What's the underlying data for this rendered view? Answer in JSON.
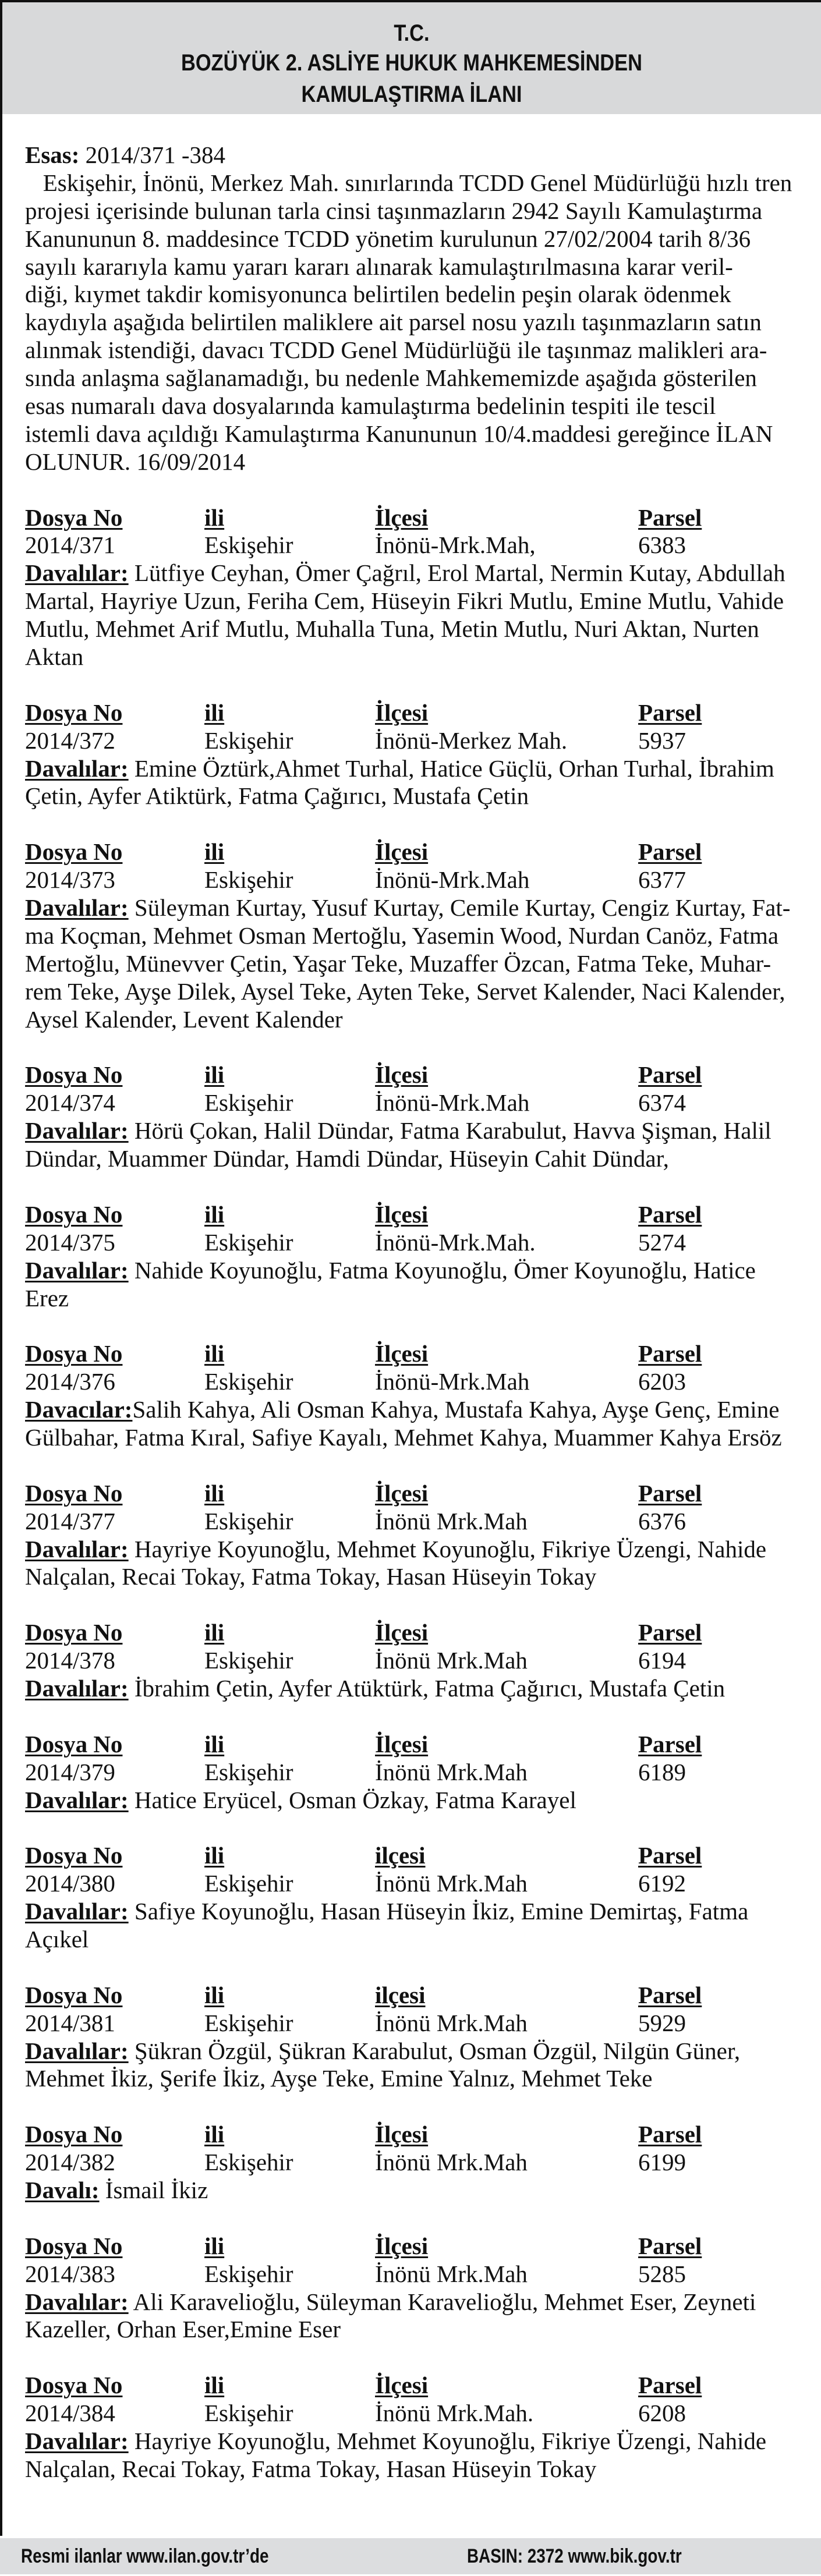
{
  "header": {
    "line1": "T.C.",
    "line2": "BOZÜYÜK 2. ASLİYE HUKUK MAHKEMESİNDEN",
    "line3": "KAMULAŞTIRMA İLANI"
  },
  "esas": {
    "label": "Esas:",
    "value": " 2014/371 -384"
  },
  "paragraph_lines": [
    "   Eskişehir, İnönü, Merkez Mah. sınırlarında TCDD Genel Müdürlüğü hızlı tren",
    "projesi içerisinde bulunan tarla cinsi taşınmazların 2942 Sayılı Kamulaştırma",
    "Kanununun 8. maddesince TCDD yönetim kurulunun 27/02/2004 tarih 8/36",
    "sayılı kararıyla kamu yararı kararı alınarak kamulaştırılmasına karar veril-",
    "diği, kıymet takdir komisyonunca belirtilen bedelin peşin olarak ödenmek",
    "kaydıyla aşağıda belirtilen maliklere ait parsel nosu yazılı taşınmazların satın",
    "alınmak istendiği, davacı TCDD Genel Müdürlüğü ile taşınmaz malikleri ara-",
    "sında anlaşma sağlanamadığı, bu nedenle Mahkememizde aşağıda gösterilen",
    "esas numaralı dava dosyalarında kamulaştırma bedelinin tespiti ile tescil",
    "istemli dava açıldığı Kamulaştırma Kanununun 10/4.maddesi gereğince İLAN",
    "OLUNUR. 16/09/2014"
  ],
  "cases": [
    {
      "h": [
        "Dosya No",
        "ili",
        "İlçesi",
        "Parsel"
      ],
      "v": [
        "2014/371",
        "Eskişehir",
        "İnönü-Mrk.Mah,",
        "6383"
      ],
      "party_label": "Davalılar:",
      "lines": [
        " Lütfiye Ceyhan, Ömer Çağrıl, Erol Martal, Nermin Kutay, Abdullah",
        "Martal, Hayriye Uzun, Feriha Cem, Hüseyin Fikri Mutlu, Emine Mutlu, Vahide",
        "Mutlu, Mehmet Arif Mutlu, Muhalla Tuna, Metin Mutlu, Nuri Aktan, Nurten",
        "Aktan"
      ]
    },
    {
      "h": [
        "Dosya No",
        "ili",
        "İlçesi",
        "Parsel"
      ],
      "v": [
        "2014/372",
        "Eskişehir",
        "İnönü-Merkez Mah.",
        "5937"
      ],
      "party_label": "Davalılar:",
      "lines": [
        " Emine Öztürk,Ahmet Turhal, Hatice Güçlü, Orhan Turhal, İbrahim",
        "Çetin, Ayfer Atiktürk, Fatma Çağırıcı, Mustafa Çetin"
      ]
    },
    {
      "h": [
        "Dosya No",
        "ili",
        "İlçesi",
        "Parsel"
      ],
      "v": [
        "2014/373",
        "Eskişehir",
        "İnönü-Mrk.Mah",
        "6377"
      ],
      "party_label": "Davalılar:",
      "lines": [
        " Süleyman Kurtay, Yusuf Kurtay, Cemile Kurtay, Cengiz Kurtay, Fat-",
        "ma Koçman, Mehmet Osman Mertoğlu, Yasemin Wood, Nurdan Canöz, Fatma",
        "Mertoğlu, Münevver Çetin, Yaşar Teke, Muzaffer Özcan, Fatma Teke, Muhar-",
        "rem Teke, Ayşe Dilek, Aysel Teke, Ayten Teke, Servet Kalender, Naci Kalender,",
        "Aysel Kalender, Levent Kalender"
      ]
    },
    {
      "h": [
        "Dosya No",
        "ili",
        "İlçesi",
        "Parsel"
      ],
      "v": [
        "2014/374",
        "Eskişehir",
        "İnönü-Mrk.Mah",
        "6374"
      ],
      "party_label": "Davalılar:",
      "lines": [
        " Hörü Çokan, Halil Dündar, Fatma Karabulut, Havva Şişman, Halil",
        "Dündar, Muammer Dündar, Hamdi Dündar, Hüseyin Cahit Dündar,"
      ]
    },
    {
      "h": [
        "Dosya No",
        "ili",
        "İlçesi",
        "Parsel"
      ],
      "v": [
        "2014/375",
        "Eskişehir",
        "İnönü-Mrk.Mah.",
        "5274"
      ],
      "party_label": "Davalılar:",
      "lines": [
        " Nahide Koyunoğlu, Fatma Koyunoğlu, Ömer Koyunoğlu, Hatice",
        "Erez"
      ]
    },
    {
      "h": [
        "Dosya No",
        "ili",
        "İlçesi",
        "Parsel"
      ],
      "v": [
        "2014/376",
        "Eskişehir",
        "İnönü-Mrk.Mah",
        "6203"
      ],
      "party_label": "Davacılar:",
      "lines": [
        "Salih Kahya, Ali Osman Kahya, Mustafa Kahya, Ayşe Genç, Emine",
        "Gülbahar, Fatma Kıral, Safiye Kayalı, Mehmet Kahya, Muammer Kahya Ersöz"
      ]
    },
    {
      "h": [
        "Dosya No",
        "ili",
        "İlçesi",
        "Parsel"
      ],
      "v": [
        "2014/377",
        "Eskişehir",
        "İnönü Mrk.Mah",
        "6376"
      ],
      "party_label": "Davalılar:",
      "lines": [
        " Hayriye Koyunoğlu, Mehmet Koyunoğlu, Fikriye Üzengi, Nahide",
        "Nalçalan, Recai Tokay, Fatma Tokay, Hasan Hüseyin Tokay"
      ]
    },
    {
      "h": [
        "Dosya No",
        "ili",
        "İlçesi",
        "Parsel"
      ],
      "v": [
        "2014/378",
        "Eskişehir",
        "İnönü Mrk.Mah",
        "6194"
      ],
      "party_label": "Davalılar:",
      "lines": [
        " İbrahim Çetin, Ayfer Atüktürk, Fatma Çağırıcı, Mustafa Çetin"
      ]
    },
    {
      "h": [
        "Dosya No",
        "ili",
        "İlçesi",
        "Parsel"
      ],
      "v": [
        "2014/379",
        "Eskişehir",
        "İnönü Mrk.Mah",
        "6189"
      ],
      "party_label": "Davalılar:",
      "lines": [
        " Hatice Eryücel, Osman Özkay, Fatma Karayel"
      ]
    },
    {
      "h": [
        "Dosya No",
        "ili",
        "ilçesi",
        "Parsel"
      ],
      "v": [
        "2014/380",
        "Eskişehir",
        "İnönü Mrk.Mah",
        "6192"
      ],
      "party_label": "Davalılar:",
      "lines": [
        " Safiye Koyunoğlu, Hasan Hüseyin İkiz, Emine Demirtaş, Fatma",
        "Açıkel"
      ]
    },
    {
      "h": [
        "Dosya No",
        "ili",
        "ilçesi",
        "Parsel"
      ],
      "v": [
        "2014/381",
        "Eskişehir",
        "İnönü Mrk.Mah",
        "5929"
      ],
      "party_label": "Davalılar:",
      "lines": [
        " Şükran Özgül, Şükran Karabulut, Osman Özgül, Nilgün Güner,",
        "Mehmet İkiz, Şerife İkiz, Ayşe Teke, Emine Yalnız, Mehmet Teke"
      ]
    },
    {
      "h": [
        "Dosya No",
        "ili",
        "İlçesi",
        "Parsel"
      ],
      "v": [
        "2014/382",
        "Eskişehir",
        "İnönü Mrk.Mah",
        "6199"
      ],
      "party_label": "Davalı:",
      "lines": [
        " İsmail İkiz"
      ]
    },
    {
      "h": [
        "Dosya No",
        "ili",
        "İlçesi",
        "Parsel"
      ],
      "v": [
        "2014/383",
        "Eskişehir",
        "İnönü Mrk.Mah",
        "5285"
      ],
      "party_label": "Davalılar:",
      "lines": [
        " Ali Karavelioğlu, Süleyman Karavelioğlu, Mehmet Eser, Zeyneti",
        "Kazeller, Orhan Eser,Emine Eser"
      ]
    },
    {
      "h": [
        "Dosya No",
        "ili",
        "İlçesi",
        "Parsel"
      ],
      "v": [
        "2014/384",
        "Eskişehir",
        "İnönü Mrk.Mah.",
        "6208"
      ],
      "party_label": "Davalılar:",
      "lines": [
        " Hayriye Koyunoğlu, Mehmet Koyunoğlu, Fikriye Üzengi, Nahide",
        "Nalçalan, Recai Tokay, Fatma Tokay, Hasan Hüseyin Tokay"
      ]
    }
  ],
  "footer": {
    "left": "Resmi ilanlar www.ilan.gov.tr’de",
    "right": "BASIN: 2372  www.bik.gov.tr"
  },
  "colors": {
    "header_bg": "#d8d9da",
    "footer_bg": "#dcdddf",
    "text": "#111111"
  }
}
